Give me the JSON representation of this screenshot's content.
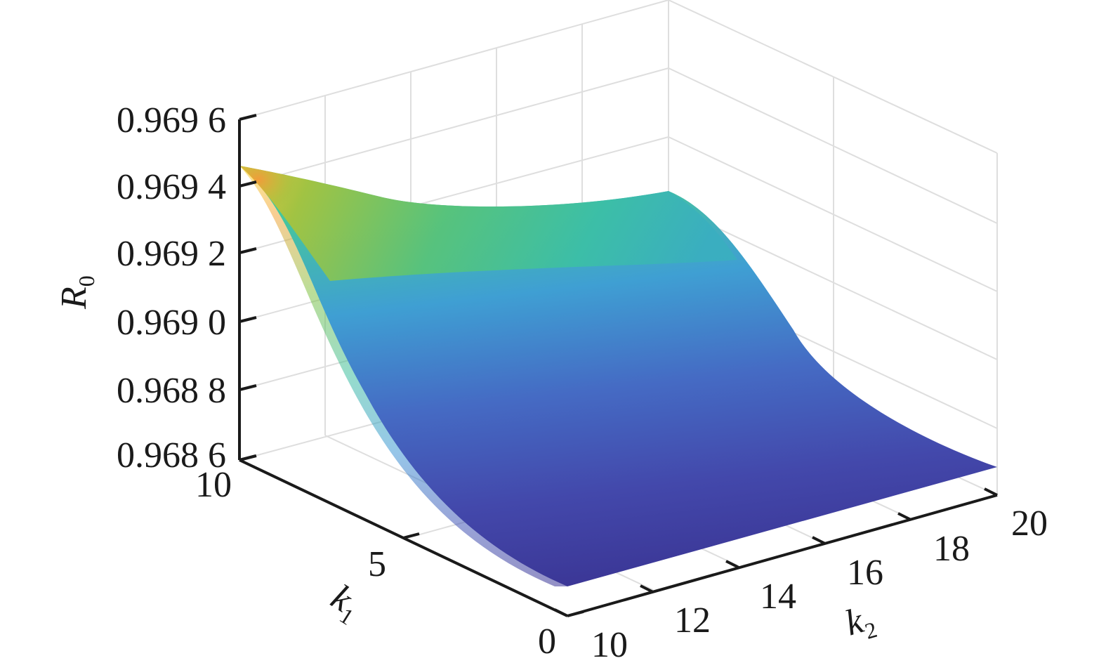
{
  "chart_data": {
    "type": "surface",
    "title": "",
    "xlabel": "k2",
    "ylabel": "k1",
    "zlabel": "R0",
    "xlim": [
      10,
      20
    ],
    "ylim": [
      0,
      10
    ],
    "zlim": [
      0.9686,
      0.9696
    ],
    "x_ticks": [
      "10",
      "12",
      "14",
      "16",
      "18",
      "20"
    ],
    "y_ticks": [
      "0",
      "5",
      "10"
    ],
    "z_ticks": [
      "0.968 6",
      "0.968 8",
      "0.969 0",
      "0.969 2",
      "0.969 4",
      "0.969 6"
    ],
    "grid": true,
    "colormap": "parula",
    "surface_corners": [
      {
        "k1": 10,
        "k2": 10,
        "R0": 0.96945
      },
      {
        "k1": 10,
        "k2": 20,
        "R0": 0.96937
      },
      {
        "k1": 0,
        "k2": 10,
        "R0": 0.9686
      },
      {
        "k1": 0,
        "k2": 20,
        "R0": 0.9686
      }
    ]
  }
}
